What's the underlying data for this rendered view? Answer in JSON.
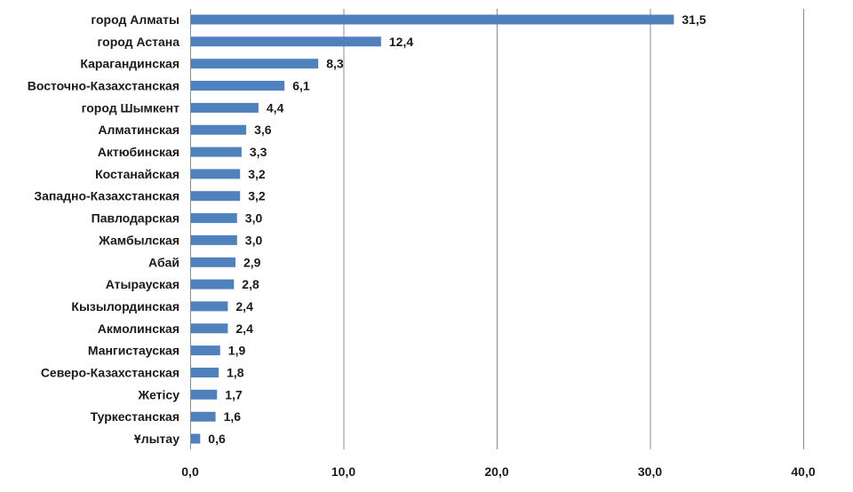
{
  "chart_data": {
    "type": "bar",
    "orientation": "horizontal",
    "title": "",
    "xlabel": "",
    "ylabel": "",
    "categories": [
      "город Алматы",
      "город Астана",
      "Карагандинская",
      "Восточно-Казахстанская",
      "город Шымкент",
      "Алматинская",
      "Актюбинская",
      "Костанайская",
      "Западно-Казахстанская",
      "Павлодарская",
      "Жамбылская",
      "Абай",
      "Атырауская",
      "Кызылординская",
      "Акмолинская",
      "Мангистауская",
      "Северо-Казахстанская",
      "Жетісу",
      "Туркестанская",
      "Ұлытау"
    ],
    "values": [
      31.5,
      12.4,
      8.3,
      6.1,
      4.4,
      3.6,
      3.3,
      3.2,
      3.2,
      3.0,
      3.0,
      2.9,
      2.8,
      2.4,
      2.4,
      1.9,
      1.8,
      1.7,
      1.6,
      0.6
    ],
    "value_labels": [
      "31,5",
      "12,4",
      "8,3",
      "6,1",
      "4,4",
      "3,6",
      "3,3",
      "3,2",
      "3,2",
      "3,0",
      "3,0",
      "2,9",
      "2,8",
      "2,4",
      "2,4",
      "1,9",
      "1,8",
      "1,7",
      "1,6",
      "0,6"
    ],
    "xlim": [
      0,
      40
    ],
    "x_ticks": [
      0,
      10,
      20,
      30,
      40
    ],
    "x_tick_labels": [
      "0,0",
      "10,0",
      "20,0",
      "30,0",
      "40,0"
    ],
    "grid": "vertical",
    "legend": "none",
    "bar_color": "#4f81bd"
  }
}
